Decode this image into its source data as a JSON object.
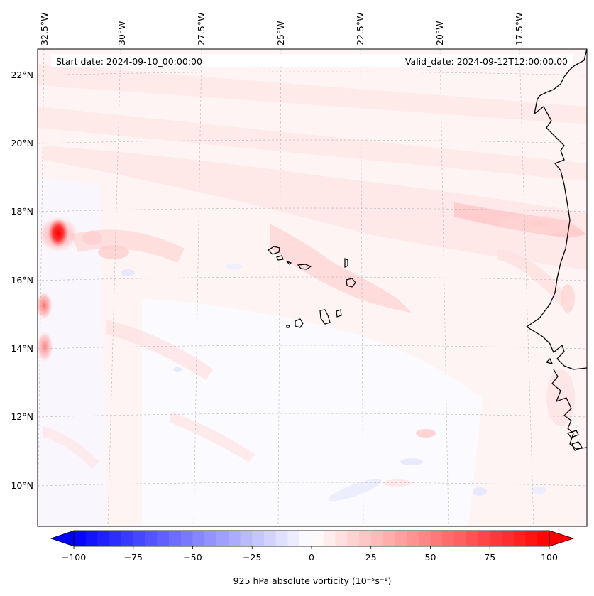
{
  "header": {
    "start_date": "Start date: 2024-09-10_00:00:00",
    "valid_date": "Valid_date: 2024-09-12T12:00:00.00"
  },
  "map": {
    "lon_labels": [
      "32.5°W",
      "30°W",
      "27.5°W",
      "25°W",
      "22.5°W",
      "20°W",
      "17.5°W"
    ],
    "lat_labels": [
      "22°N",
      "20°N",
      "18°N",
      "16°N",
      "14°N",
      "12°N",
      "10°N"
    ],
    "features": [
      "cape-verde-islands",
      "west-africa-coastline"
    ]
  },
  "colorbar": {
    "label": "925 hPa absolute vorticity (10⁻⁵s⁻¹)",
    "ticks": [
      "−100",
      "−75",
      "−50",
      "−25",
      "0",
      "25",
      "50",
      "75",
      "100"
    ],
    "min": -100,
    "max": 100,
    "cmap": "bwr",
    "colors": {
      "low": "#0000ff",
      "mid": "#ffffff",
      "high": "#ff0000"
    }
  }
}
